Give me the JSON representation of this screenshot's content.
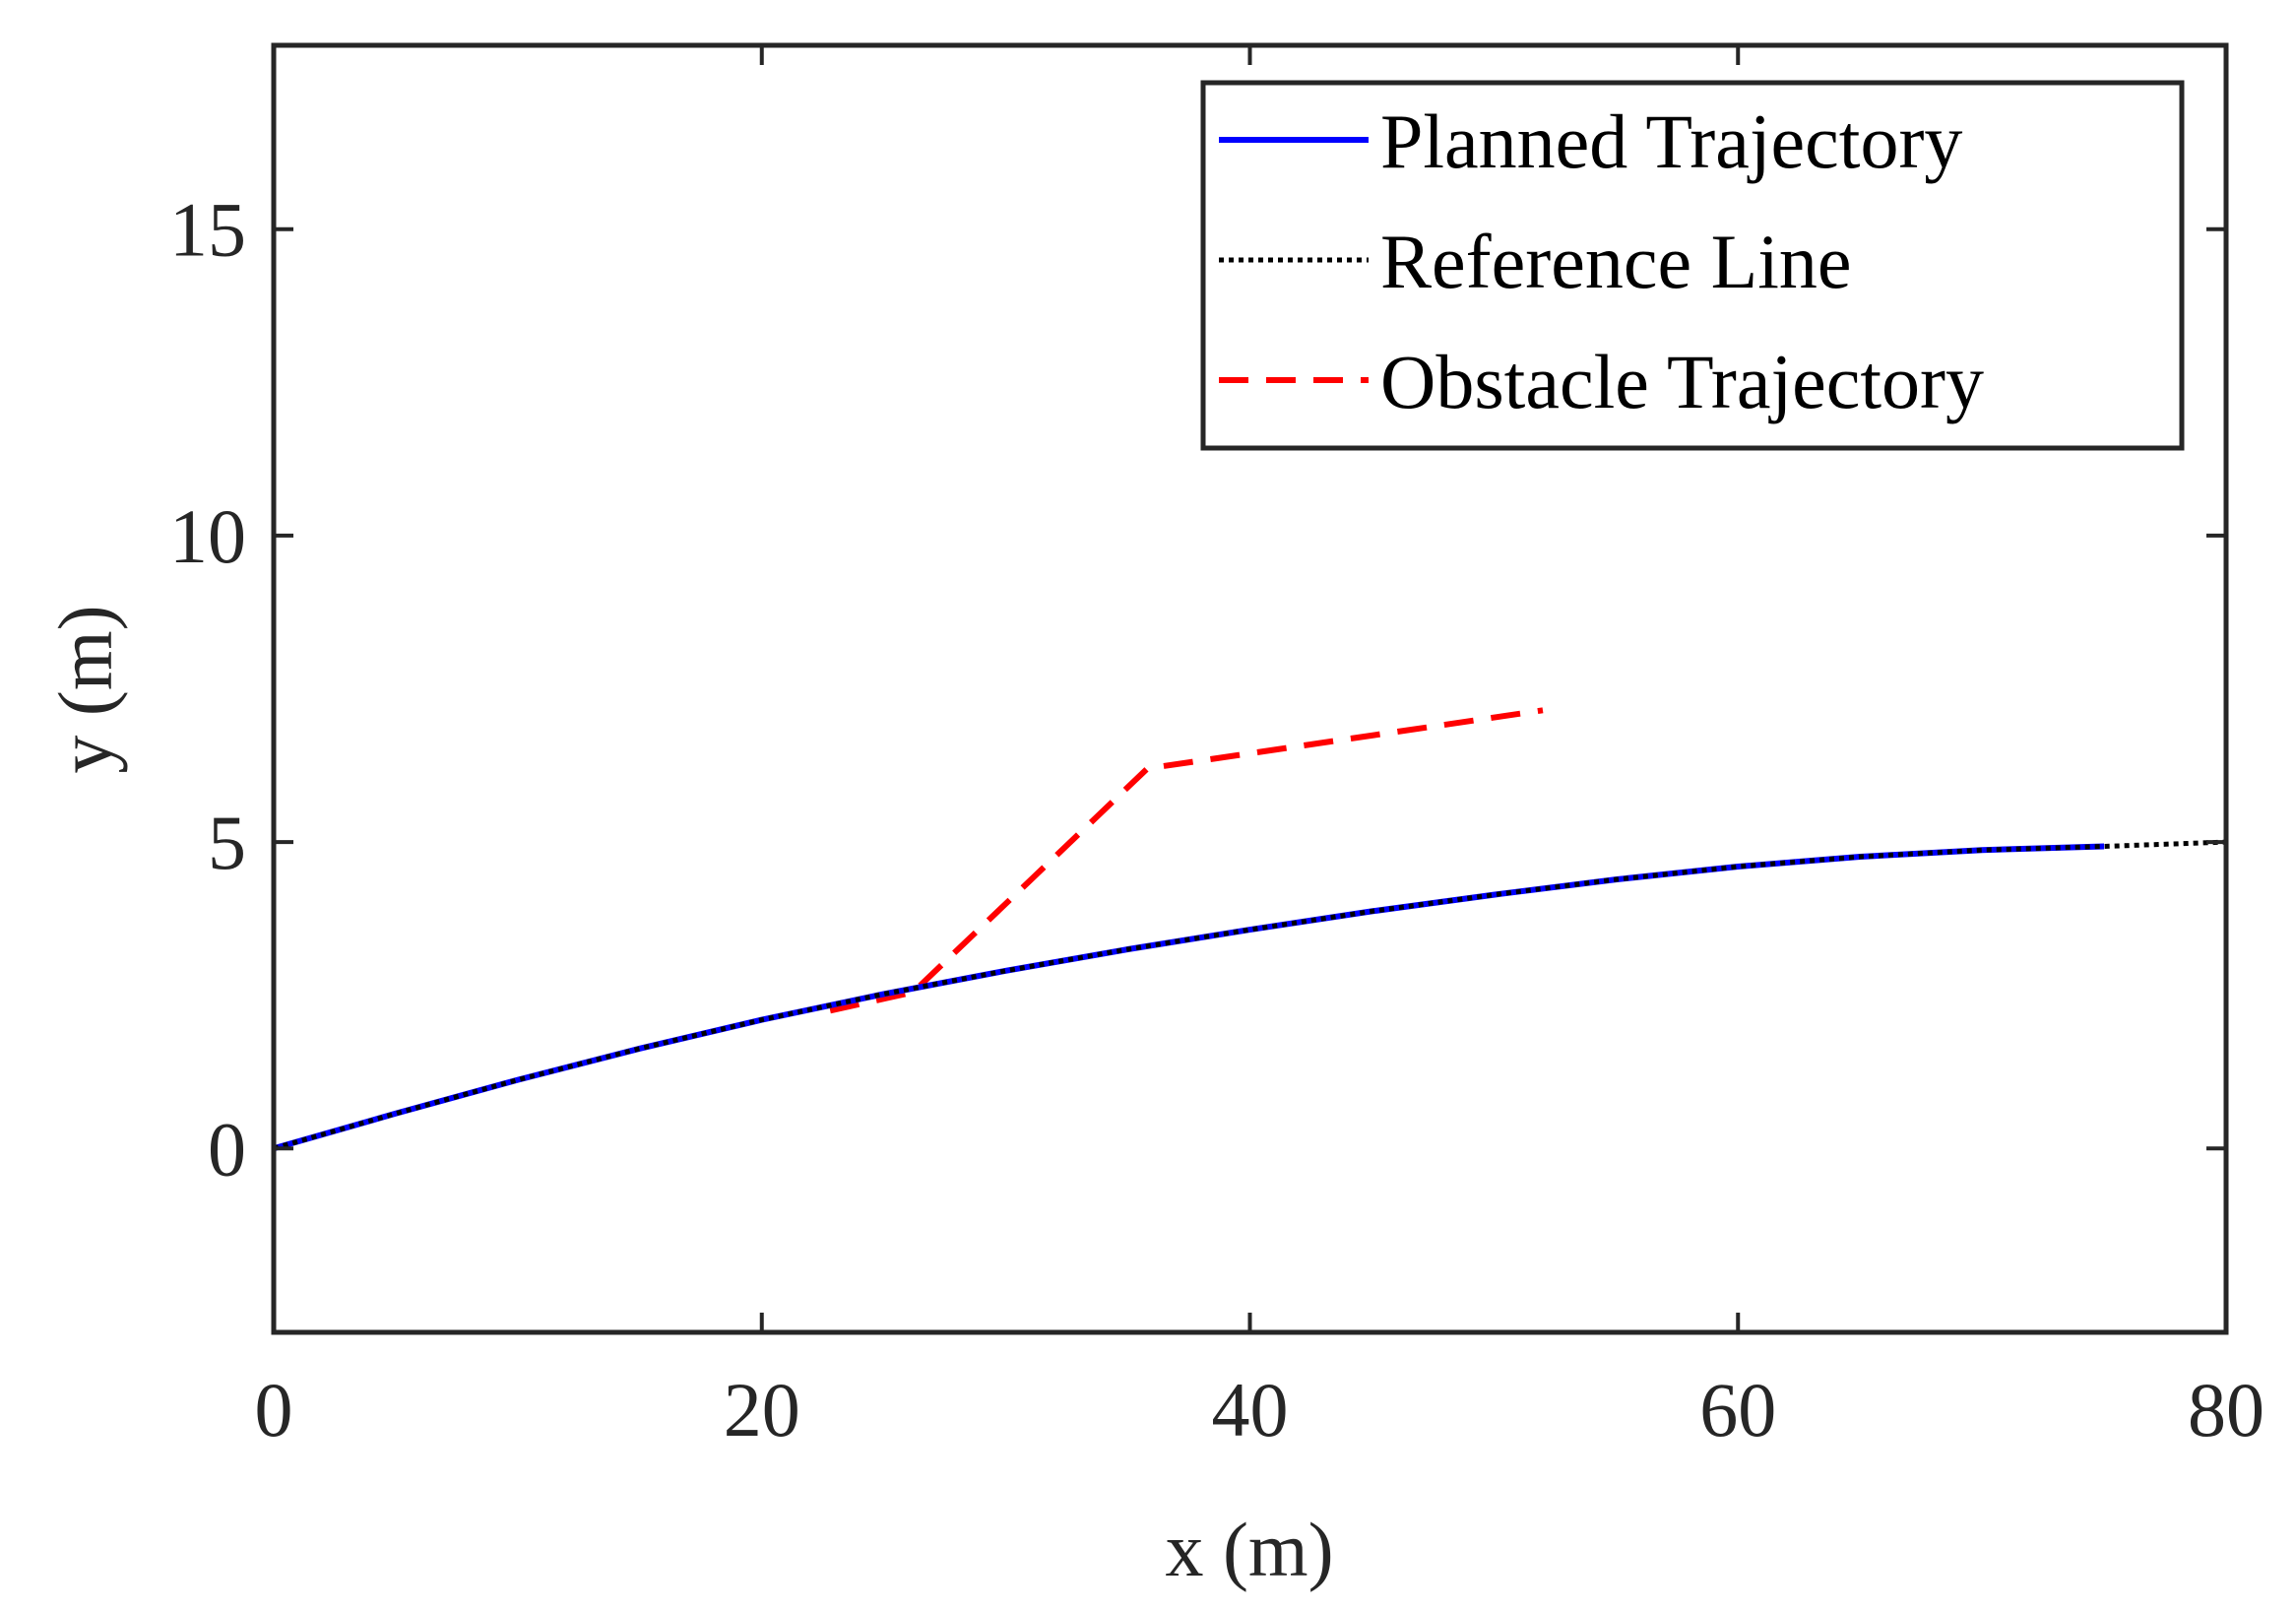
{
  "chart_data": {
    "type": "line",
    "xlabel": "x (m)",
    "ylabel": "y (m)",
    "xlim": [
      0,
      80
    ],
    "ylim": [
      -3,
      18
    ],
    "xticks": [
      0,
      20,
      40,
      60,
      80
    ],
    "yticks": [
      0,
      5,
      10,
      15
    ],
    "grid": false,
    "legend_position": "top-right",
    "series": [
      {
        "name": "Planned Trajectory",
        "color": "#0000ff",
        "style": "solid",
        "x": [
          0,
          5,
          10,
          15,
          20,
          25,
          30,
          35,
          40,
          45,
          50,
          55,
          60,
          65,
          70,
          75
        ],
        "y": [
          0,
          0.57,
          1.12,
          1.63,
          2.1,
          2.52,
          2.9,
          3.25,
          3.57,
          3.87,
          4.14,
          4.39,
          4.6,
          4.76,
          4.87,
          4.93
        ]
      },
      {
        "name": "Reference Line",
        "color": "#000000",
        "style": "dotted",
        "x": [
          0,
          5,
          10,
          15,
          20,
          25,
          30,
          35,
          40,
          45,
          50,
          55,
          60,
          65,
          70,
          75,
          80
        ],
        "y": [
          0,
          0.57,
          1.12,
          1.63,
          2.1,
          2.52,
          2.9,
          3.25,
          3.57,
          3.87,
          4.14,
          4.39,
          4.6,
          4.76,
          4.87,
          4.93,
          5.0
        ]
      },
      {
        "name": "Obstacle Trajectory",
        "color": "#ff0000",
        "style": "dashed",
        "x": [
          22.8,
          26.2,
          35.8,
          52.0
        ],
        "y": [
          2.25,
          2.55,
          6.2,
          7.15
        ]
      }
    ]
  }
}
